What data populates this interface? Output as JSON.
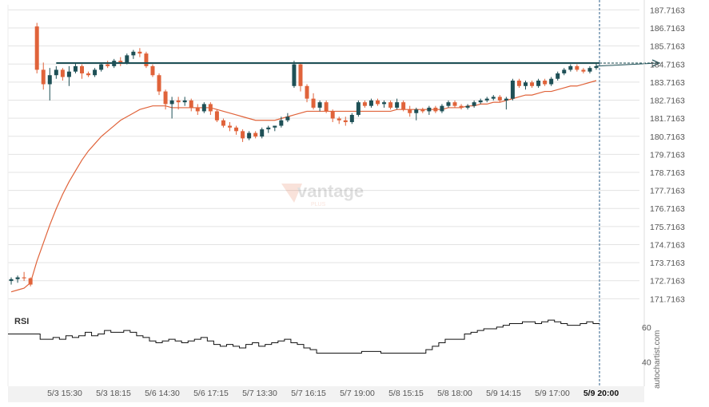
{
  "chart_data": {
    "type": "candlestick",
    "watermark": {
      "brand": "vantage",
      "sub": "PLUS"
    },
    "source_label": "autochartist.com",
    "price_axis": {
      "ticks": [
        187.7163,
        186.7163,
        185.7163,
        184.7163,
        183.7163,
        182.7163,
        181.7163,
        180.7163,
        179.7163,
        178.7163,
        177.7163,
        176.7163,
        175.7163,
        174.7163,
        173.7163,
        172.7163,
        171.7163
      ],
      "tick_labels": [
        "187.7163",
        "186.7163",
        "185.7163",
        "184.7163",
        "183.7163",
        "182.7163",
        "181.7163",
        "180.7163",
        "179.7163",
        "178.7163",
        "177.7163",
        "176.7163",
        "175.7163",
        "174.7163",
        "173.7163",
        "172.7163",
        "171.7163"
      ],
      "ylim": [
        171.2,
        188.0
      ]
    },
    "time_axis": {
      "labels": [
        "5/3 15:30",
        "5/3 18:15",
        "5/6 14:30",
        "5/6 17:15",
        "5/7 13:30",
        "5/7 16:15",
        "5/7 19:00",
        "5/8 15:15",
        "5/8 18:00",
        "5/9 14:15",
        "5/9 17:00",
        "5/9 20:00"
      ],
      "highlight": "5/9 20:00"
    },
    "resistance_level": 184.77,
    "projection_target": 184.77,
    "colors": {
      "up": "#1e5056",
      "down": "#e0633a",
      "level": "#1e5056",
      "ma": "#e0633a",
      "rsi": "#111111",
      "grid": "#e3e3e3"
    },
    "candles_ohlc": [
      [
        172.7,
        172.9,
        172.5,
        172.8
      ],
      [
        172.8,
        173.0,
        172.6,
        172.9
      ],
      [
        172.9,
        173.2,
        172.7,
        172.85
      ],
      [
        172.85,
        172.9,
        172.4,
        172.5
      ],
      [
        186.8,
        187.0,
        184.2,
        184.4
      ],
      [
        184.4,
        184.8,
        183.3,
        183.6
      ],
      [
        183.6,
        184.5,
        182.7,
        184.1
      ],
      [
        184.1,
        184.6,
        183.9,
        184.4
      ],
      [
        184.4,
        184.5,
        183.8,
        184.0
      ],
      [
        184.0,
        184.6,
        183.5,
        184.3
      ],
      [
        184.3,
        184.8,
        184.2,
        184.6
      ],
      [
        184.6,
        184.7,
        183.9,
        184.2
      ],
      [
        184.2,
        184.3,
        184.0,
        184.1
      ],
      [
        184.1,
        184.5,
        184.0,
        184.4
      ],
      [
        184.4,
        184.8,
        184.3,
        184.7
      ],
      [
        184.7,
        184.9,
        184.5,
        184.6
      ],
      [
        184.6,
        185.0,
        184.5,
        184.9
      ],
      [
        184.9,
        185.1,
        184.6,
        184.8
      ],
      [
        184.8,
        185.3,
        184.7,
        185.2
      ],
      [
        185.2,
        185.5,
        185.0,
        185.4
      ],
      [
        185.4,
        185.6,
        185.1,
        185.3
      ],
      [
        185.3,
        185.4,
        184.5,
        184.6
      ],
      [
        184.6,
        184.7,
        184.0,
        184.1
      ],
      [
        184.1,
        184.2,
        183.0,
        183.2
      ],
      [
        183.2,
        183.3,
        182.2,
        182.5
      ],
      [
        182.5,
        182.9,
        181.7,
        182.7
      ],
      [
        182.7,
        182.9,
        182.2,
        182.6
      ],
      [
        182.6,
        182.9,
        182.4,
        182.7
      ],
      [
        182.7,
        182.8,
        182.1,
        182.3
      ],
      [
        182.3,
        182.5,
        181.9,
        182.1
      ],
      [
        182.1,
        182.6,
        182.0,
        182.5
      ],
      [
        182.5,
        182.6,
        181.9,
        182.1
      ],
      [
        182.1,
        182.2,
        181.5,
        181.6
      ],
      [
        181.6,
        181.7,
        181.2,
        181.3
      ],
      [
        181.3,
        181.5,
        181.0,
        181.2
      ],
      [
        181.2,
        181.3,
        180.8,
        181.0
      ],
      [
        181.0,
        181.1,
        180.4,
        180.6
      ],
      [
        180.6,
        181.0,
        180.5,
        180.9
      ],
      [
        180.9,
        181.0,
        180.6,
        180.7
      ],
      [
        180.7,
        181.2,
        180.6,
        181.1
      ],
      [
        181.1,
        181.3,
        180.9,
        181.2
      ],
      [
        181.2,
        181.3,
        181.0,
        181.3
      ],
      [
        181.3,
        181.8,
        181.2,
        181.6
      ],
      [
        181.6,
        182.0,
        181.5,
        181.8
      ],
      [
        183.5,
        184.9,
        183.4,
        184.7
      ],
      [
        184.7,
        184.8,
        183.2,
        183.5
      ],
      [
        183.5,
        183.6,
        182.6,
        182.8
      ],
      [
        182.8,
        183.1,
        182.2,
        182.3
      ],
      [
        182.3,
        182.7,
        182.1,
        182.6
      ],
      [
        182.6,
        182.7,
        182.0,
        182.1
      ],
      [
        182.1,
        182.2,
        181.5,
        181.7
      ],
      [
        181.7,
        181.8,
        181.4,
        181.6
      ],
      [
        181.6,
        181.8,
        181.3,
        181.5
      ],
      [
        181.5,
        182.0,
        181.4,
        181.9
      ],
      [
        181.9,
        182.7,
        181.8,
        182.6
      ],
      [
        182.6,
        182.7,
        182.3,
        182.4
      ],
      [
        182.4,
        182.8,
        182.3,
        182.7
      ],
      [
        182.7,
        182.8,
        182.4,
        182.5
      ],
      [
        182.5,
        182.7,
        182.3,
        182.6
      ],
      [
        182.6,
        182.7,
        182.2,
        182.3
      ],
      [
        182.3,
        182.8,
        182.2,
        182.6
      ],
      [
        182.6,
        182.7,
        182.1,
        182.2
      ],
      [
        182.2,
        182.4,
        181.8,
        182.0
      ],
      [
        182.0,
        182.3,
        181.6,
        182.2
      ],
      [
        182.2,
        182.3,
        182.0,
        182.1
      ],
      [
        182.1,
        182.4,
        181.9,
        182.3
      ],
      [
        182.3,
        182.4,
        182.0,
        182.1
      ],
      [
        182.1,
        182.5,
        182.0,
        182.4
      ],
      [
        182.4,
        182.7,
        182.3,
        182.6
      ],
      [
        182.6,
        182.7,
        182.3,
        182.4
      ],
      [
        182.4,
        182.5,
        182.2,
        182.3
      ],
      [
        182.3,
        182.5,
        182.2,
        182.4
      ],
      [
        182.4,
        182.7,
        182.3,
        182.6
      ],
      [
        182.6,
        182.8,
        182.5,
        182.7
      ],
      [
        182.7,
        182.9,
        182.6,
        182.8
      ],
      [
        182.8,
        183.0,
        182.7,
        182.9
      ],
      [
        182.9,
        183.0,
        182.6,
        182.7
      ],
      [
        182.7,
        182.9,
        182.2,
        182.8
      ],
      [
        182.8,
        183.9,
        182.7,
        183.8
      ],
      [
        183.8,
        183.9,
        183.4,
        183.5
      ],
      [
        183.5,
        183.8,
        183.3,
        183.7
      ],
      [
        183.7,
        183.8,
        183.4,
        183.5
      ],
      [
        183.5,
        183.9,
        183.4,
        183.8
      ],
      [
        183.8,
        183.9,
        183.5,
        183.6
      ],
      [
        183.6,
        184.0,
        183.5,
        183.9
      ],
      [
        183.9,
        184.3,
        183.8,
        184.2
      ],
      [
        184.2,
        184.5,
        184.1,
        184.4
      ],
      [
        184.4,
        184.7,
        184.3,
        184.6
      ],
      [
        184.6,
        184.7,
        184.3,
        184.4
      ],
      [
        184.4,
        184.5,
        184.2,
        184.3
      ],
      [
        184.3,
        184.6,
        184.2,
        184.5
      ],
      [
        184.5,
        184.8,
        184.4,
        184.6
      ]
    ],
    "moving_average": [
      172.1,
      172.2,
      172.3,
      172.6,
      173.8,
      174.8,
      175.8,
      176.7,
      177.5,
      178.2,
      178.8,
      179.4,
      179.9,
      180.3,
      180.7,
      181.0,
      181.3,
      181.6,
      181.8,
      182.0,
      182.2,
      182.3,
      182.4,
      182.4,
      182.4,
      182.3,
      182.3,
      182.3,
      182.3,
      182.3,
      182.3,
      182.3,
      182.2,
      182.1,
      182.0,
      181.9,
      181.8,
      181.7,
      181.6,
      181.6,
      181.6,
      181.6,
      181.7,
      181.8,
      181.9,
      182.0,
      182.1,
      182.1,
      182.1,
      182.1,
      182.1,
      182.1,
      182.1,
      182.1,
      182.1,
      182.1,
      182.1,
      182.1,
      182.1,
      182.1,
      182.2,
      182.2,
      182.2,
      182.2,
      182.2,
      182.2,
      182.2,
      182.2,
      182.3,
      182.3,
      182.3,
      182.4,
      182.4,
      182.5,
      182.5,
      182.6,
      182.6,
      182.7,
      182.8,
      182.9,
      183.0,
      183.0,
      183.1,
      183.2,
      183.2,
      183.3,
      183.4,
      183.5,
      183.5,
      183.6,
      183.7,
      183.8
    ],
    "rsi": {
      "label": "RSI",
      "ticks": [
        60,
        40
      ],
      "ylim": [
        26,
        70
      ],
      "values": [
        56,
        56,
        56,
        56,
        56,
        53,
        53,
        54,
        53,
        55,
        54,
        55,
        57,
        55,
        56,
        58,
        57,
        57,
        58,
        57,
        55,
        54,
        52,
        51,
        52,
        53,
        52,
        51,
        52,
        53,
        54,
        52,
        50,
        49,
        50,
        49,
        48,
        50,
        51,
        49,
        50,
        51,
        52,
        53,
        51,
        50,
        48,
        47,
        45,
        45,
        45,
        45,
        45,
        45,
        45,
        46,
        46,
        46,
        45,
        45,
        45,
        45,
        45,
        45,
        45,
        47,
        49,
        51,
        53,
        53,
        53,
        56,
        57,
        58,
        59,
        59,
        60,
        61,
        62,
        62,
        63,
        63,
        62,
        63,
        64,
        63,
        62,
        61,
        61,
        62,
        63,
        62
      ]
    }
  }
}
